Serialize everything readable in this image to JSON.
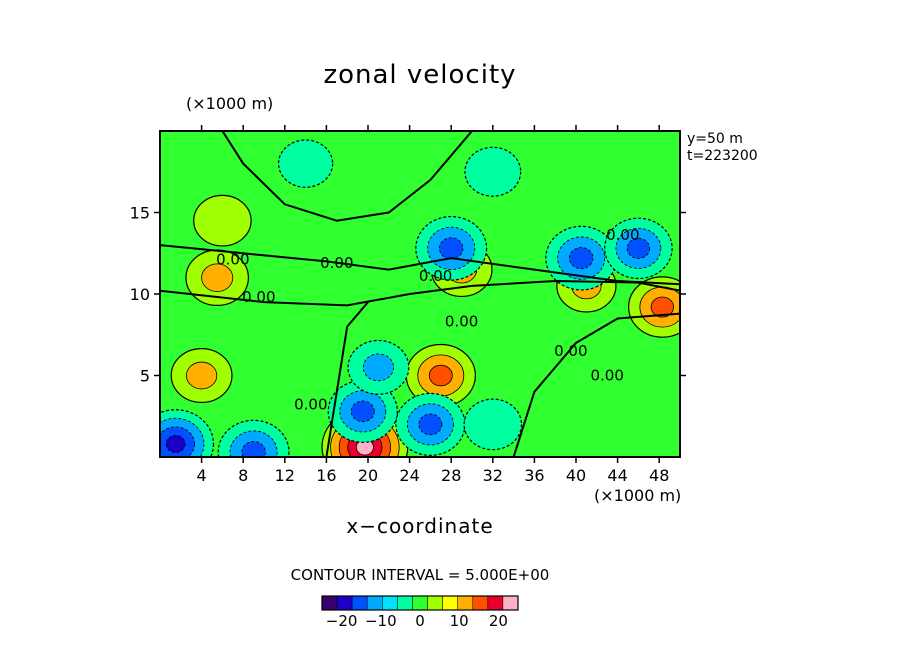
{
  "chart_data": {
    "type": "heatmap",
    "title": "zonal velocity",
    "xlabel": "x−coordinate",
    "x_unit": "(×1000 m)",
    "y_unit": "(×1000 m)",
    "xlim": [
      0,
      50
    ],
    "ylim": [
      0,
      20
    ],
    "x_ticks": [
      4,
      8,
      12,
      16,
      20,
      24,
      28,
      32,
      36,
      40,
      44,
      48
    ],
    "y_ticks": [
      5,
      10,
      15
    ],
    "info": [
      "y=50  m",
      "t=223200"
    ],
    "contour_interval_text": "CONTOUR INTERVAL = 5.000E+00",
    "contour_labels": [
      "0.00",
      "0.00",
      "0.00",
      "0.00",
      "0.00",
      "0.00",
      "0.00",
      "0.00",
      "0.00"
    ],
    "colorbar": {
      "range": [
        -25,
        25
      ],
      "tick_values": [
        -20,
        -10,
        0,
        10,
        20
      ],
      "tick_labels": [
        "−20",
        "−10",
        "0",
        "10",
        "20"
      ]
    },
    "features": [
      {
        "x": 19.7,
        "y": 0.6,
        "value": 24
      },
      {
        "x": 27.0,
        "y": 5.0,
        "value": 14
      },
      {
        "x": 48.3,
        "y": 9.2,
        "value": 13
      },
      {
        "x": 4.0,
        "y": 5.0,
        "value": 9
      },
      {
        "x": 5.5,
        "y": 11.0,
        "value": 10
      },
      {
        "x": 29.0,
        "y": 11.5,
        "value": 9
      },
      {
        "x": 41.0,
        "y": 10.5,
        "value": 8
      },
      {
        "x": 28.0,
        "y": 12.8,
        "value": -15
      },
      {
        "x": 40.5,
        "y": 12.2,
        "value": -15
      },
      {
        "x": 46.0,
        "y": 12.8,
        "value": -13
      },
      {
        "x": 1.5,
        "y": 0.8,
        "value": -18
      },
      {
        "x": 9.0,
        "y": 0.3,
        "value": -15
      },
      {
        "x": 19.5,
        "y": 2.8,
        "value": -14
      },
      {
        "x": 26.0,
        "y": 2.0,
        "value": -14
      },
      {
        "x": 21.0,
        "y": 5.5,
        "value": -9
      },
      {
        "x": 32.0,
        "y": 2.0,
        "value": -7
      },
      {
        "x": 32.0,
        "y": 17.5,
        "value": -6
      },
      {
        "x": 6.0,
        "y": 14.5,
        "value": 7
      },
      {
        "x": 14.0,
        "y": 18.0,
        "value": -5
      }
    ],
    "colors": [
      "#3a006e",
      "#1c00c8",
      "#0050ff",
      "#00aaff",
      "#00e0ff",
      "#00ffa0",
      "#30ff30",
      "#a0ff00",
      "#ffff00",
      "#ffb000",
      "#ff5000",
      "#e8002a",
      "#ffb0c8"
    ]
  }
}
